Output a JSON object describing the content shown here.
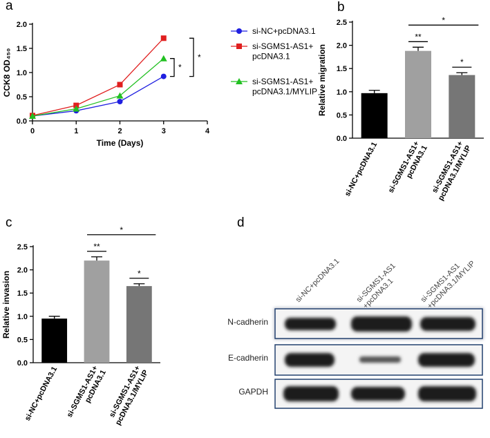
{
  "chart_data": [
    {
      "type": "line",
      "panel_label": "a",
      "x_label": "Time (Days)",
      "y_label": "CCK8 OD₄₅₀",
      "x": [
        0,
        1,
        2,
        3
      ],
      "xlim": [
        0,
        4
      ],
      "xticks": [
        0,
        1,
        2,
        3,
        4
      ],
      "ylim": [
        0,
        2.0
      ],
      "yticks": [
        {
          "value": 0,
          "label": "0.0"
        },
        {
          "value": 0.5,
          "label": "0.5"
        },
        {
          "value": 1.0,
          "label": "1.0"
        },
        {
          "value": 1.5,
          "label": "1.5"
        },
        {
          "value": 2.0,
          "label": "2.0"
        }
      ],
      "series": [
        {
          "name": "si-NC+pcDNA3.1",
          "color": "#1f1fe0",
          "marker": "circle",
          "values": [
            0.1,
            0.21,
            0.4,
            0.92
          ]
        },
        {
          "name": "si-SGMS1-AS1+\npcDNA3.1",
          "color": "#e01f1f",
          "marker": "square",
          "values": [
            0.11,
            0.32,
            0.75,
            1.71
          ]
        },
        {
          "name": "si-SGMS1-AS1+\npcDNA3.1/MYLIP",
          "color": "#22c022",
          "marker": "triangle",
          "values": [
            0.1,
            0.25,
            0.52,
            1.29
          ]
        }
      ],
      "annotations": [
        "*",
        "*"
      ]
    },
    {
      "type": "bar",
      "panel_label": "b",
      "y_label": "Relative migration",
      "categories": [
        "si-NC+pcDNA3.1",
        "si-SGMS1-AS1+\npcDNA3.1",
        "si-SGMS1-AS1+\npcDNA3.1/MYLIP"
      ],
      "values": [
        0.97,
        1.88,
        1.36
      ],
      "errors": [
        0.06,
        0.08,
        0.05
      ],
      "colors": [
        "#000000",
        "#a0a0a0",
        "#767676"
      ],
      "ylim": [
        0,
        2.5
      ],
      "yticks": [
        {
          "value": 0,
          "label": "0.0"
        },
        {
          "value": 0.5,
          "label": "0.5"
        },
        {
          "value": 1.0,
          "label": "1.0"
        },
        {
          "value": 1.5,
          "label": "1.5"
        },
        {
          "value": 2.0,
          "label": "2.0"
        },
        {
          "value": 2.5,
          "label": "2.5"
        }
      ],
      "annotations": [
        "**",
        "*",
        "*"
      ]
    },
    {
      "type": "bar",
      "panel_label": "c",
      "y_label": "Relative invasion",
      "categories": [
        "si-NC+pcDNA3.1",
        "si-SGMS1-AS1+\npcDNA3.1",
        "si-SGMS1-AS1+\npcDNA3.1/MYLIP"
      ],
      "values": [
        0.95,
        2.2,
        1.65
      ],
      "errors": [
        0.05,
        0.08,
        0.05
      ],
      "colors": [
        "#000000",
        "#a0a0a0",
        "#767676"
      ],
      "ylim": [
        0,
        2.5
      ],
      "yticks": [
        {
          "value": 0,
          "label": "0.0"
        },
        {
          "value": 0.5,
          "label": "0.5"
        },
        {
          "value": 1.0,
          "label": "1.0"
        },
        {
          "value": 1.5,
          "label": "1.5"
        },
        {
          "value": 2.0,
          "label": "2.0"
        },
        {
          "value": 2.5,
          "label": "2.5"
        }
      ],
      "annotations": [
        "**",
        "*",
        "*"
      ]
    }
  ],
  "blot": {
    "panel_label": "d",
    "lanes": [
      "si-NC+pcDNA3.1",
      "si-SGMS1-AS1\n+pcDNA3.1",
      "si-SGMS1-AS1\n+pcDNA3.1/MYLIP"
    ],
    "rows": [
      "N-cadherin",
      "E-cadherin",
      "GAPDH"
    ]
  }
}
